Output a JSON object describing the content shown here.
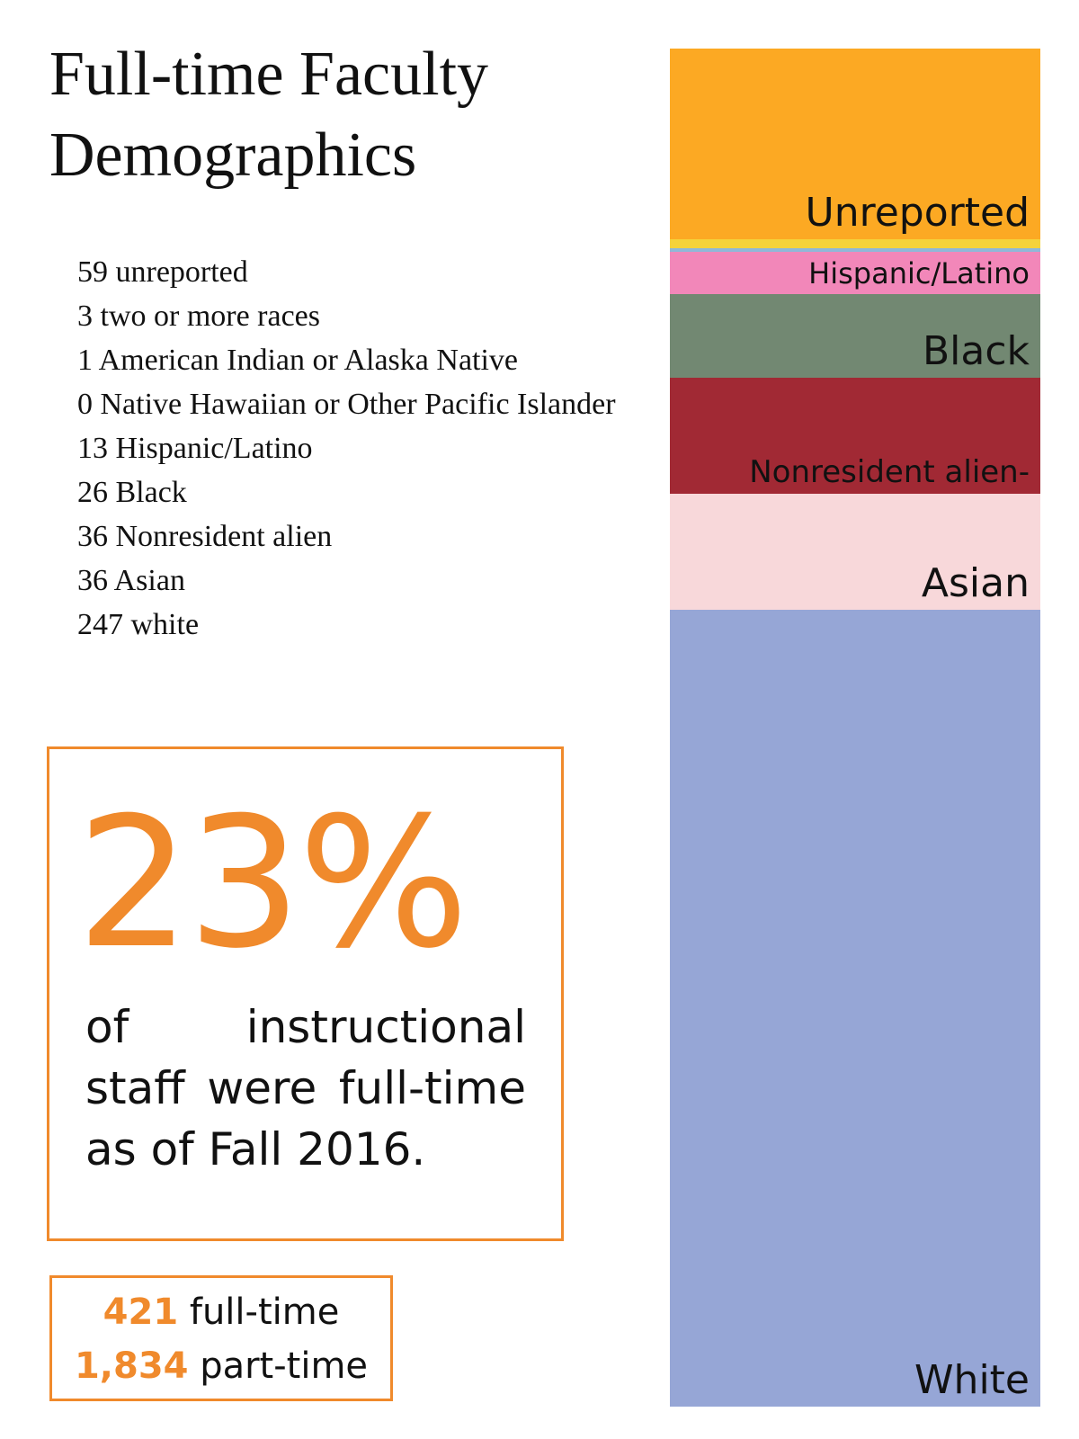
{
  "title_lines": [
    "Full-time Faculty",
    "Demographics"
  ],
  "stats_list": [
    "59 unreported",
    "3 two or more races",
    "1 American Indian or Alaska Native",
    "0 Native Hawaiian or Other Pacific Islander",
    "13 Hispanic/Latino",
    "26 Black",
    "36 Nonresident alien",
    "36 Asian",
    "247 white"
  ],
  "highlight": {
    "percent": "23%",
    "caption": "of instructional staff were full-time as of Fall 2016."
  },
  "counts": {
    "fulltime_num": "421",
    "fulltime_label": "full-time",
    "parttime_num": "1,834",
    "parttime_label": "part-time"
  },
  "colors": {
    "accent": "#f08a2c",
    "unreported": "#fca923",
    "two_or_more": "#f5d33a",
    "american_indian": "#8fb8d8",
    "hispanic": "#f287b9",
    "black": "#728872",
    "nonresident": "#a12934",
    "asian": "#f8d8da",
    "white": "#96a6d6"
  },
  "chart_data": {
    "type": "bar",
    "orientation": "vertical-stacked",
    "total": 421,
    "segments": [
      {
        "label": "Unreported",
        "value": 59,
        "color": "#fca923"
      },
      {
        "label": "",
        "value": 3,
        "color": "#f5d33a"
      },
      {
        "label": "",
        "value": 1,
        "color": "#8fb8d8"
      },
      {
        "label": "Hispanic/Latino",
        "value": 13,
        "color": "#f287b9"
      },
      {
        "label": "Black",
        "value": 26,
        "color": "#728872"
      },
      {
        "label": "Nonresident alien-",
        "value": 36,
        "color": "#a12934"
      },
      {
        "label": "Asian",
        "value": 36,
        "color": "#f8d8da"
      },
      {
        "label": "White",
        "value": 247,
        "color": "#96a6d6"
      }
    ]
  }
}
